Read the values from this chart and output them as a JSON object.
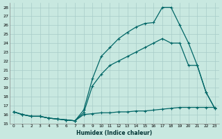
{
  "xlabel": "Humidex (Indice chaleur)",
  "ylabel": "",
  "bg_color": "#c8e8e0",
  "line_color": "#006666",
  "grid_color": "#a8ccc8",
  "xlim": [
    -0.5,
    23.5
  ],
  "ylim": [
    15,
    28.5
  ],
  "xticks": [
    0,
    1,
    2,
    3,
    4,
    5,
    6,
    7,
    8,
    9,
    10,
    11,
    12,
    13,
    14,
    15,
    16,
    17,
    18,
    19,
    20,
    21,
    22,
    23
  ],
  "yticks": [
    15,
    16,
    17,
    18,
    19,
    20,
    21,
    22,
    23,
    24,
    25,
    26,
    27,
    28
  ],
  "line_bottom_x": [
    0,
    1,
    2,
    3,
    4,
    5,
    6,
    7,
    8,
    9,
    10,
    11,
    12,
    13,
    14,
    15,
    16,
    17,
    18,
    19,
    20,
    21,
    22,
    23
  ],
  "line_bottom_y": [
    16.3,
    16.0,
    15.8,
    15.8,
    15.6,
    15.5,
    15.4,
    15.3,
    16.0,
    16.1,
    16.2,
    16.2,
    16.3,
    16.3,
    16.4,
    16.4,
    16.5,
    16.6,
    16.7,
    16.8,
    16.8,
    16.8,
    16.8,
    16.8
  ],
  "line_mid_x": [
    0,
    1,
    2,
    3,
    4,
    5,
    6,
    7,
    8,
    9,
    10,
    11,
    12,
    13,
    14,
    15,
    16,
    17,
    18,
    19,
    20,
    21,
    22,
    23
  ],
  "line_mid_y": [
    16.3,
    16.0,
    15.8,
    15.8,
    15.6,
    15.5,
    15.4,
    15.3,
    16.2,
    19.2,
    20.5,
    21.5,
    22.0,
    22.5,
    23.0,
    23.5,
    24.0,
    24.5,
    24.0,
    24.0,
    21.5,
    21.5,
    18.5,
    16.7
  ],
  "line_top_x": [
    0,
    1,
    2,
    3,
    4,
    5,
    6,
    7,
    8,
    9,
    10,
    11,
    12,
    13,
    14,
    15,
    16,
    17,
    18,
    19,
    20,
    21,
    22,
    23
  ],
  "line_top_y": [
    16.3,
    16.0,
    15.8,
    15.8,
    15.6,
    15.5,
    15.4,
    15.3,
    16.5,
    20.0,
    22.5,
    23.5,
    24.5,
    25.2,
    25.8,
    26.2,
    26.3,
    28.0,
    28.0,
    26.0,
    24.0,
    21.5,
    18.5,
    16.7
  ]
}
